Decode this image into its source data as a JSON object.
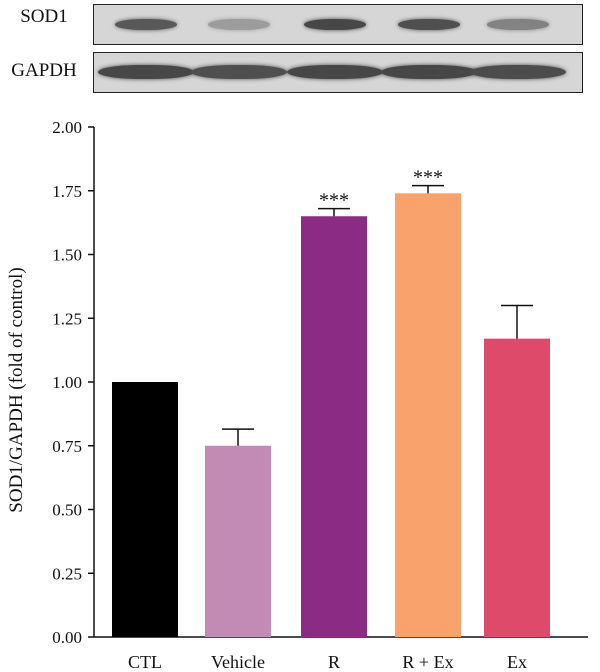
{
  "blots": [
    {
      "label": "SOD1",
      "intensities": [
        0.75,
        0.35,
        0.85,
        0.8,
        0.5
      ]
    },
    {
      "label": "GAPDH",
      "intensities": [
        0.85,
        0.8,
        0.85,
        0.85,
        0.82
      ]
    }
  ],
  "chart_data": {
    "type": "bar",
    "categories": [
      "CTL",
      "Vehicle",
      "R",
      "R + Ex",
      "Ex"
    ],
    "values": [
      1.0,
      0.75,
      1.65,
      1.74,
      1.17
    ],
    "errors": [
      0,
      0.065,
      0.03,
      0.03,
      0.13
    ],
    "annotations": [
      "",
      "",
      "***",
      "***",
      ""
    ],
    "colors": [
      "#000000",
      "#c28bb5",
      "#8c2b84",
      "#f9a26b",
      "#de4a69"
    ],
    "ylabel": "SOD1/GAPDH (fold of control)",
    "ylim": [
      0,
      2.0
    ],
    "yticks": [
      "0.00",
      "0.25",
      "0.50",
      "0.75",
      "1.00",
      "1.25",
      "1.50",
      "1.75",
      "2.00"
    ]
  }
}
